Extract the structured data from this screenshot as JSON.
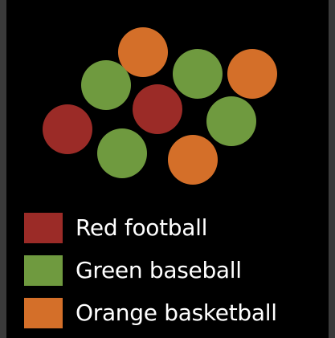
{
  "legend": [
    {
      "label": "Red football",
      "color": "#9b2b27",
      "item": "red-football"
    },
    {
      "label": "Green baseball",
      "color": "#6f9a3f",
      "item": "green-baseball"
    },
    {
      "label": "Orange basketball",
      "color": "#d46f29",
      "item": "orange-basketball"
    }
  ],
  "balls": [
    {
      "item": "orange-basketball"
    },
    {
      "item": "green-baseball"
    },
    {
      "item": "green-baseball"
    },
    {
      "item": "orange-basketball"
    },
    {
      "item": "red-football"
    },
    {
      "item": "red-football"
    },
    {
      "item": "green-baseball"
    },
    {
      "item": "green-baseball"
    },
    {
      "item": "orange-basketball"
    }
  ]
}
